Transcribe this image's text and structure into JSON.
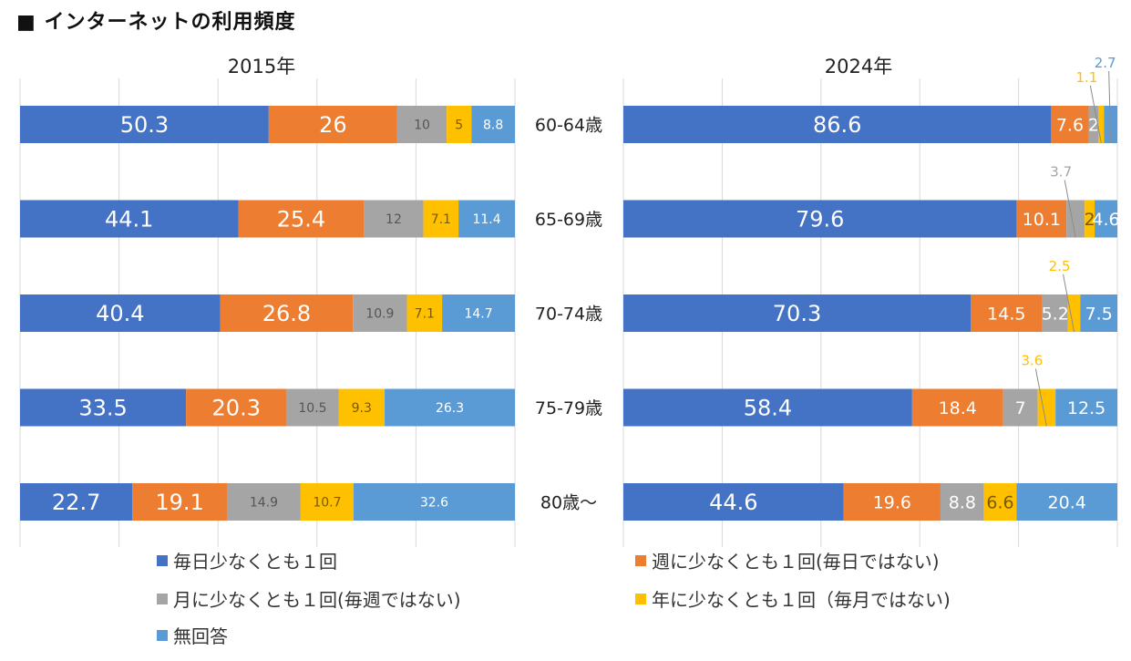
{
  "title": "■ インターネットの利用頻度",
  "chart_data": {
    "type": "bar",
    "orientation": "horizontal",
    "stacked": true,
    "title": "インターネットの利用頻度",
    "categories": [
      "60-64歳",
      "65-69歳",
      "70-74歳",
      "75-79歳",
      "80歳〜"
    ],
    "series_names": [
      "毎日少なくとも１回",
      "週に少なくとも１回(毎日ではない)",
      "月に少なくとも１回(毎週ではない)",
      "年に少なくとも１回（毎月ではない)",
      "無回答"
    ],
    "colors": [
      "#4472C4",
      "#ED7D31",
      "#A5A5A5",
      "#FFC000",
      "#5B9BD5"
    ],
    "xlim": [
      0,
      100
    ],
    "grid": true,
    "gridline_step": 20,
    "legend_position": "bottom",
    "panels": [
      {
        "title": "2015年",
        "series": [
          {
            "name": "毎日少なくとも１回",
            "values": [
              50.3,
              44.1,
              40.4,
              33.5,
              22.7
            ]
          },
          {
            "name": "週に少なくとも１回(毎日ではない)",
            "values": [
              26,
              25.4,
              26.8,
              20.3,
              19.1
            ]
          },
          {
            "name": "月に少なくとも１回(毎週ではない)",
            "values": [
              10,
              12,
              10.9,
              10.5,
              14.9
            ]
          },
          {
            "name": "年に少なくとも１回（毎月ではない)",
            "values": [
              5,
              7.1,
              7.1,
              9.3,
              10.7
            ]
          },
          {
            "name": "無回答",
            "values": [
              8.8,
              11.4,
              14.7,
              26.3,
              32.6
            ]
          }
        ]
      },
      {
        "title": "2024年",
        "series": [
          {
            "name": "毎日少なくとも１回",
            "values": [
              86.6,
              79.6,
              70.3,
              58.4,
              44.6
            ]
          },
          {
            "name": "週に少なくとも１回(毎日ではない)",
            "values": [
              7.6,
              10.1,
              14.5,
              18.4,
              19.6
            ]
          },
          {
            "name": "月に少なくとも１回(毎週ではない)",
            "values": [
              2,
              3.7,
              5.2,
              7,
              8.8
            ]
          },
          {
            "name": "年に少なくとも１回（毎月ではない)",
            "values": [
              1.1,
              2,
              2.5,
              3.6,
              6.6
            ]
          },
          {
            "name": "無回答",
            "values": [
              2.7,
              4.6,
              7.5,
              12.5,
              20.4
            ]
          }
        ]
      }
    ]
  },
  "legend": [
    {
      "label": "毎日少なくとも１回",
      "color": "#4472C4"
    },
    {
      "label": "週に少なくとも１回(毎日ではない)",
      "color": "#ED7D31"
    },
    {
      "label": "月に少なくとも１回(毎週ではない)",
      "color": "#A5A5A5"
    },
    {
      "label": "年に少なくとも１回（毎月ではない)",
      "color": "#FFC000"
    },
    {
      "label": "無回答",
      "color": "#5B9BD5"
    }
  ]
}
